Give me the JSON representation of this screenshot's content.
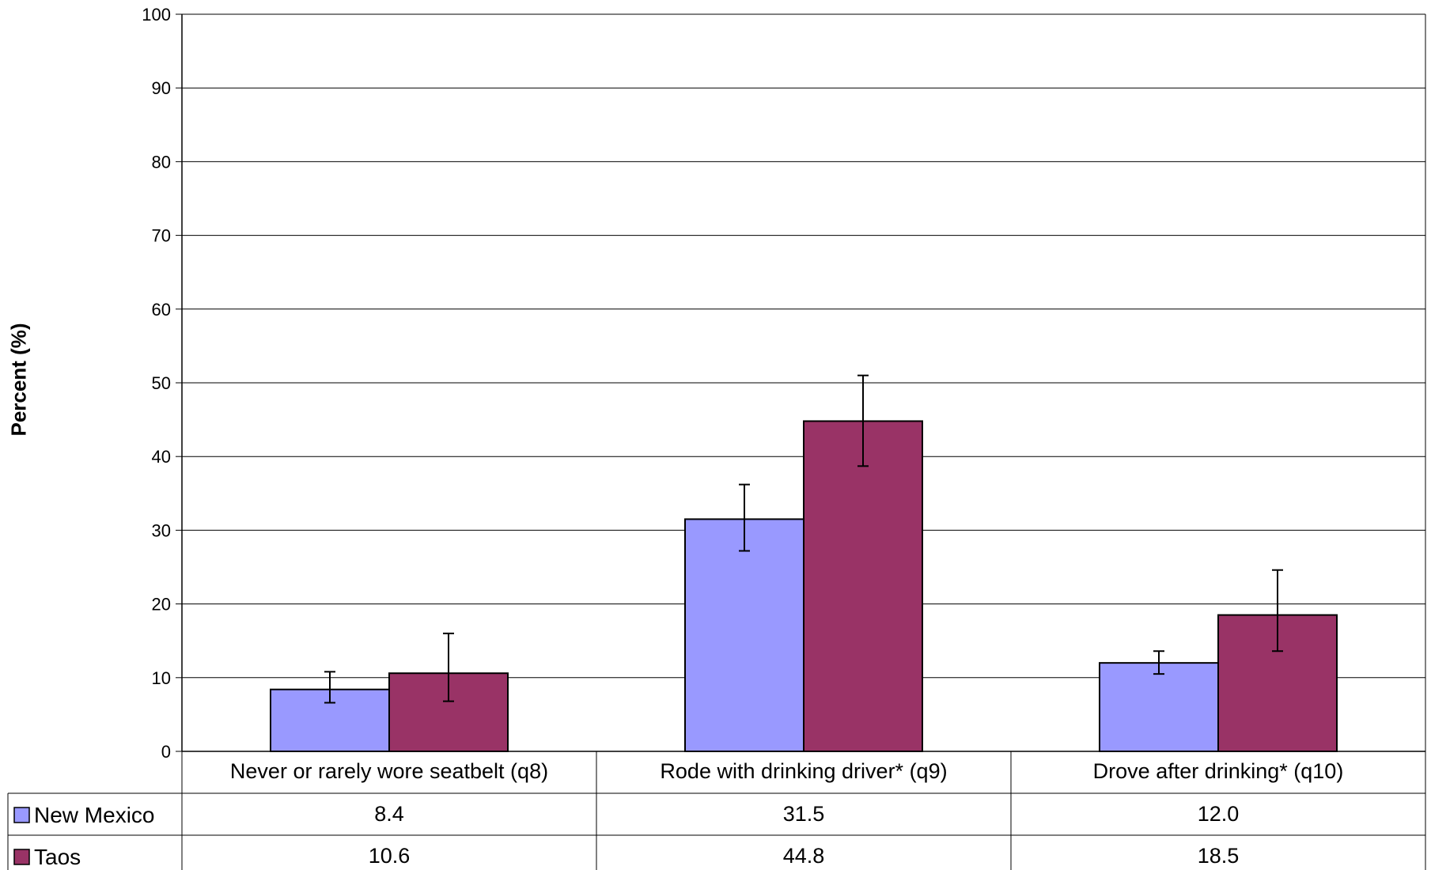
{
  "chart_data": {
    "type": "bar",
    "title": "",
    "xlabel": "",
    "ylabel": "Percent (%)",
    "ylim": [
      0,
      100
    ],
    "yticks": [
      0,
      10,
      20,
      30,
      40,
      50,
      60,
      70,
      80,
      90,
      100
    ],
    "grid": true,
    "categories": [
      "Never or rarely wore seatbelt (q8)",
      "Rode with drinking driver* (q9)",
      "Drove after drinking* (q10)"
    ],
    "series": [
      {
        "name": "New Mexico",
        "color": "#9999ff",
        "values": [
          8.4,
          31.5,
          12.0
        ],
        "labels": [
          "8.4",
          "31.5",
          "12.0"
        ],
        "error_low": [
          6.6,
          27.2,
          10.5
        ],
        "error_high": [
          10.8,
          36.2,
          13.6
        ]
      },
      {
        "name": "Taos",
        "color": "#993366",
        "values": [
          10.6,
          44.8,
          18.5
        ],
        "labels": [
          "10.6",
          "44.8",
          "18.5"
        ],
        "error_low": [
          6.8,
          38.7,
          13.6
        ],
        "error_high": [
          16.0,
          51.0,
          24.6
        ]
      }
    ],
    "legend": "data-table"
  }
}
